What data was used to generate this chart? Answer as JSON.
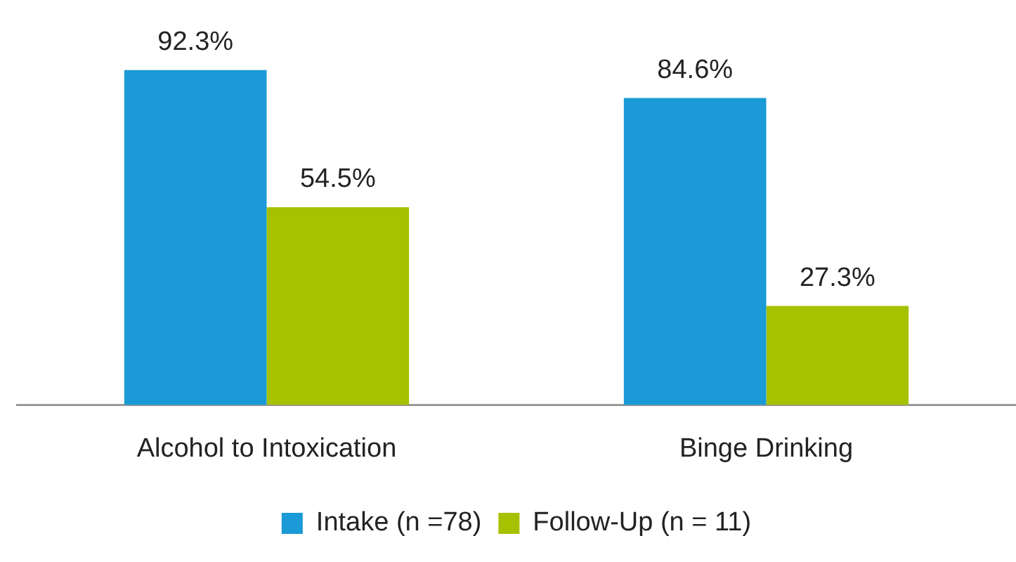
{
  "chart_data": {
    "type": "bar",
    "categories": [
      "Alcohol to Intoxication",
      "Binge Drinking"
    ],
    "series": [
      {
        "name": "Intake (n =78)",
        "color": "#1a9ad6",
        "values": [
          92.3,
          84.6
        ],
        "value_labels": [
          "92.3%",
          "84.6%"
        ]
      },
      {
        "name": "Follow-Up (n = 11)",
        "color": "#a5c100",
        "values": [
          54.5,
          27.3
        ],
        "value_labels": [
          "54.5%",
          "27.3%"
        ]
      }
    ],
    "legend": "bottom",
    "grid": false
  }
}
